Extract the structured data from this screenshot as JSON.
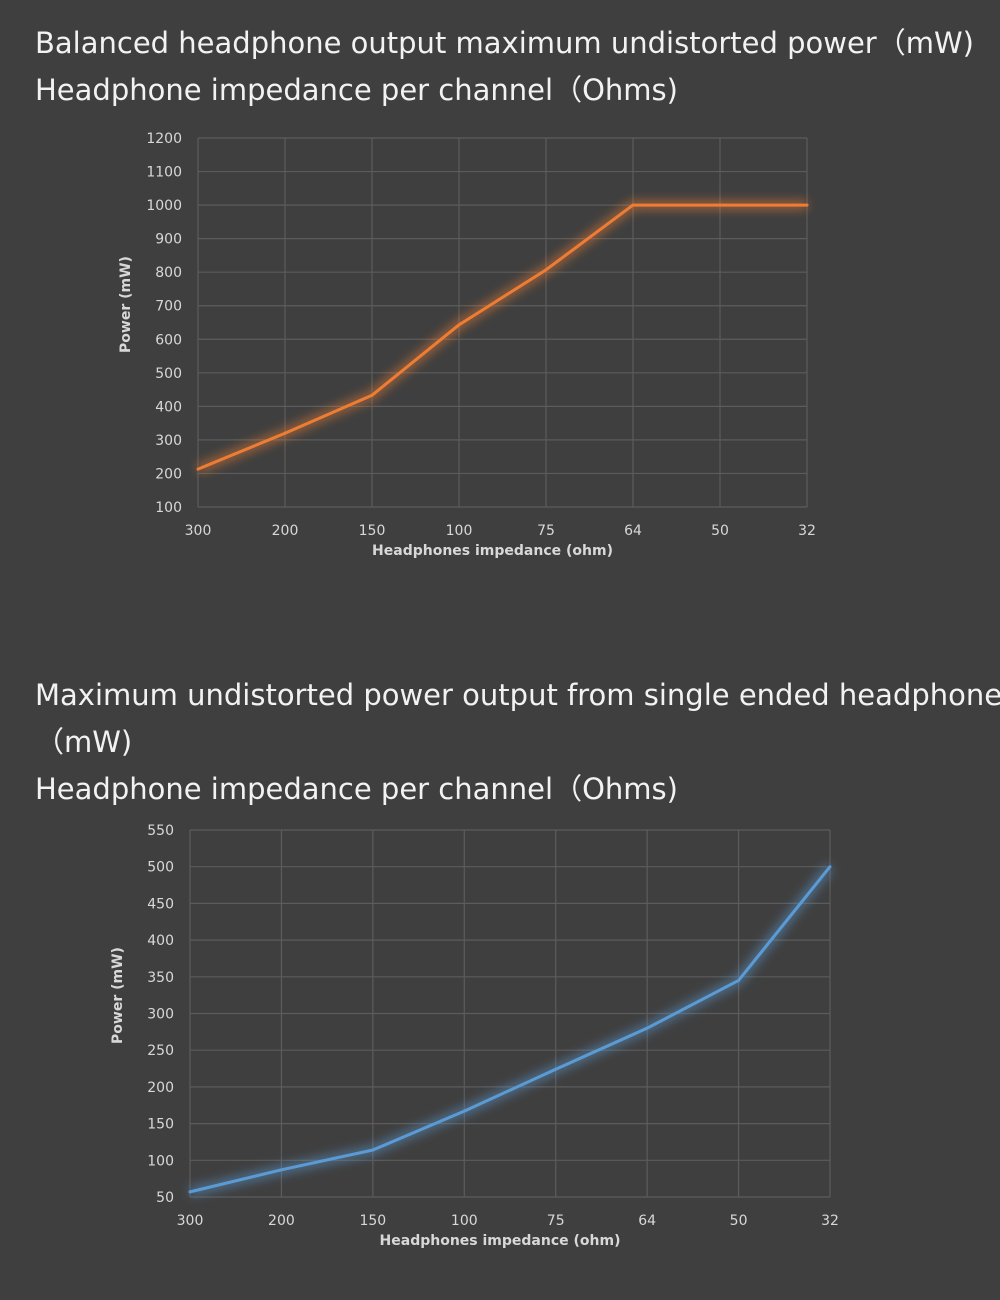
{
  "headings": {
    "chart1_line1": "Balanced headphone output maximum undistorted power（mW)",
    "chart1_line2": "Headphone impedance per channel（Ohms)",
    "chart2_line1": "Maximum undistorted power output from single ended headphones",
    "chart2_line2": "（mW)",
    "chart2_line3": "Headphone impedance per channel（Ohms)"
  },
  "colors": {
    "background": "#3f3f3f",
    "series1": "#ee7d33",
    "series2": "#5b9bd5"
  },
  "chart_data": [
    {
      "type": "line",
      "categories": [
        "300",
        "200",
        "150",
        "100",
        "75",
        "64",
        "50",
        "32"
      ],
      "series": [
        {
          "values": [
            213,
            320,
            433,
            643,
            807,
            1000,
            1000,
            1000
          ]
        }
      ],
      "xlabel": "Headphones impedance (ohm)",
      "ylabel": "Power (mW)",
      "ylim": [
        100,
        1200
      ],
      "yticks": [
        100,
        200,
        300,
        400,
        500,
        600,
        700,
        800,
        900,
        1000,
        1100,
        1200
      ],
      "grid": true
    },
    {
      "type": "line",
      "categories": [
        "300",
        "200",
        "150",
        "100",
        "75",
        "64",
        "50",
        "32"
      ],
      "series": [
        {
          "values": [
            57,
            87,
            114,
            167,
            224,
            280,
            345,
            500
          ]
        }
      ],
      "xlabel": "Headphones impedance (ohm)",
      "ylabel": "Power (mW)",
      "ylim": [
        50,
        550
      ],
      "yticks": [
        50,
        100,
        150,
        200,
        250,
        300,
        350,
        400,
        450,
        500,
        550
      ],
      "grid": true
    }
  ]
}
